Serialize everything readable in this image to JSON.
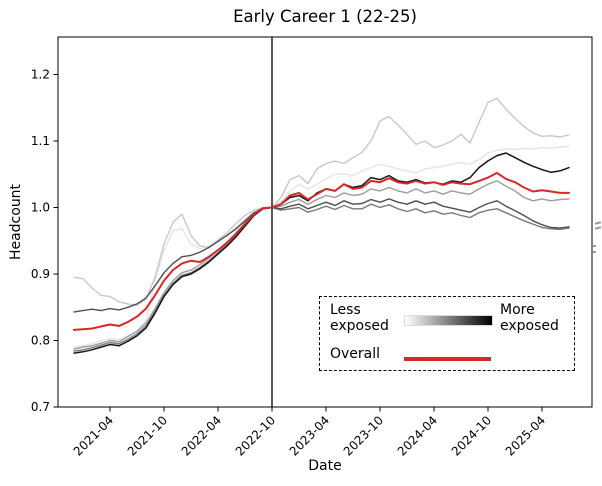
{
  "title": "Early Career 1 (22-25)",
  "axes": {
    "x_label": "Date",
    "y_label": "Headcount"
  },
  "legend": {
    "less_exposed_label": "Less exposed",
    "more_exposed_label": "More exposed",
    "overall_label": "Overall",
    "gradient_start_color": "#ffffff",
    "gradient_end_color": "#000000",
    "overall_color": "#d62828"
  },
  "chart_data": {
    "type": "line",
    "title": "Early Career 1 (22-25)",
    "xlabel": "Date",
    "ylabel": "Headcount",
    "ylim": [
      0.7,
      1.256
    ],
    "yticks": [
      0.7,
      0.8,
      0.9,
      1.0,
      1.1,
      1.2
    ],
    "xticks": [
      "2021-04",
      "2021-10",
      "2022-04",
      "2022-10",
      "2023-04",
      "2023-10",
      "2024-04",
      "2024-10",
      "2025-04"
    ],
    "vline_x": "2022-10",
    "grid": false,
    "legend_position": "lower right",
    "x": [
      "2020-12",
      "2021-01",
      "2021-02",
      "2021-03",
      "2021-04",
      "2021-05",
      "2021-06",
      "2021-07",
      "2021-08",
      "2021-09",
      "2021-10",
      "2021-11",
      "2021-12",
      "2022-01",
      "2022-02",
      "2022-03",
      "2022-04",
      "2022-05",
      "2022-06",
      "2022-07",
      "2022-08",
      "2022-09",
      "2022-10",
      "2022-11",
      "2022-12",
      "2023-01",
      "2023-02",
      "2023-03",
      "2023-04",
      "2023-05",
      "2023-06",
      "2023-07",
      "2023-08",
      "2023-09",
      "2023-10",
      "2023-11",
      "2023-12",
      "2024-01",
      "2024-02",
      "2024-03",
      "2024-04",
      "2024-05",
      "2024-06",
      "2024-07",
      "2024-08",
      "2024-09",
      "2024-10",
      "2024-11",
      "2024-12",
      "2025-01",
      "2025-02",
      "2025-03",
      "2025-04",
      "2025-05",
      "2025-06",
      "2025-07"
    ],
    "series": [
      {
        "name": "exposure-quantile-1-least-exposed",
        "color": "#e4e4e4",
        "width": 1.4,
        "values": [
          0.79,
          0.792,
          0.795,
          0.8,
          0.803,
          0.801,
          0.807,
          0.813,
          0.83,
          0.89,
          0.935,
          0.965,
          0.968,
          0.945,
          0.938,
          0.942,
          0.95,
          0.958,
          0.97,
          0.982,
          0.994,
          1.0,
          1.0,
          1.008,
          1.025,
          1.035,
          1.028,
          1.035,
          1.043,
          1.05,
          1.051,
          1.048,
          1.055,
          1.06,
          1.065,
          1.062,
          1.058,
          1.055,
          1.052,
          1.058,
          1.06,
          1.062,
          1.065,
          1.068,
          1.065,
          1.072,
          1.082,
          1.086,
          1.088,
          1.087,
          1.089,
          1.088,
          1.09,
          1.089,
          1.091,
          1.092
        ]
      },
      {
        "name": "exposure-quantile-2",
        "color": "#c8c8c8",
        "width": 1.4,
        "values": [
          0.895,
          0.893,
          0.879,
          0.868,
          0.866,
          0.858,
          0.855,
          0.853,
          0.862,
          0.895,
          0.945,
          0.978,
          0.99,
          0.958,
          0.942,
          0.94,
          0.951,
          0.962,
          0.976,
          0.988,
          0.996,
          1.0,
          1.0,
          1.015,
          1.042,
          1.048,
          1.036,
          1.058,
          1.066,
          1.07,
          1.066,
          1.075,
          1.083,
          1.1,
          1.13,
          1.137,
          1.124,
          1.11,
          1.095,
          1.1,
          1.09,
          1.094,
          1.1,
          1.11,
          1.097,
          1.128,
          1.158,
          1.164,
          1.148,
          1.134,
          1.122,
          1.112,
          1.107,
          1.108,
          1.106,
          1.109
        ]
      },
      {
        "name": "exposure-quantile-3",
        "color": "#9c9c9c",
        "width": 1.4,
        "values": [
          0.787,
          0.79,
          0.792,
          0.796,
          0.8,
          0.798,
          0.806,
          0.814,
          0.826,
          0.848,
          0.872,
          0.89,
          0.902,
          0.906,
          0.914,
          0.924,
          0.936,
          0.948,
          0.962,
          0.977,
          0.991,
          0.999,
          1.0,
          1.002,
          1.008,
          1.012,
          1.005,
          1.012,
          1.018,
          1.015,
          1.022,
          1.018,
          1.02,
          1.028,
          1.025,
          1.03,
          1.025,
          1.022,
          1.028,
          1.022,
          1.025,
          1.02,
          1.025,
          1.022,
          1.02,
          1.028,
          1.035,
          1.04,
          1.032,
          1.025,
          1.015,
          1.01,
          1.013,
          1.01,
          1.012,
          1.013
        ]
      },
      {
        "name": "exposure-quantile-4",
        "color": "#7a7a7a",
        "width": 1.4,
        "values": [
          0.784,
          0.786,
          0.789,
          0.793,
          0.797,
          0.795,
          0.802,
          0.81,
          0.822,
          0.844,
          0.868,
          0.886,
          0.898,
          0.902,
          0.91,
          0.92,
          0.932,
          0.944,
          0.958,
          0.974,
          0.989,
          0.998,
          1.0,
          0.996,
          0.998,
          1.0,
          0.993,
          0.997,
          1.002,
          0.997,
          1.003,
          0.998,
          0.998,
          1.005,
          1.0,
          1.004,
          0.998,
          0.994,
          0.998,
          0.992,
          0.995,
          0.99,
          0.992,
          0.988,
          0.985,
          0.992,
          0.996,
          0.998,
          0.992,
          0.986,
          0.98,
          0.975,
          0.97,
          0.968,
          0.967,
          0.969
        ]
      },
      {
        "name": "exposure-quantile-5",
        "color": "#4e4e4e",
        "width": 1.4,
        "values": [
          0.843,
          0.845,
          0.847,
          0.845,
          0.848,
          0.846,
          0.85,
          0.855,
          0.864,
          0.882,
          0.902,
          0.916,
          0.926,
          0.928,
          0.933,
          0.94,
          0.949,
          0.958,
          0.968,
          0.98,
          0.992,
          0.999,
          1.0,
          0.998,
          1.002,
          1.005,
          0.998,
          1.003,
          1.008,
          1.003,
          1.01,
          1.005,
          1.006,
          1.012,
          1.008,
          1.013,
          1.008,
          1.005,
          1.01,
          1.005,
          1.008,
          1.002,
          0.999,
          0.996,
          0.993,
          1.0,
          1.006,
          1.01,
          1.002,
          0.995,
          0.988,
          0.98,
          0.974,
          0.97,
          0.969,
          0.971
        ]
      },
      {
        "name": "exposure-quantile-6-most-exposed",
        "color": "#161616",
        "width": 1.5,
        "values": [
          0.781,
          0.783,
          0.786,
          0.79,
          0.794,
          0.792,
          0.799,
          0.807,
          0.819,
          0.841,
          0.866,
          0.884,
          0.896,
          0.9,
          0.908,
          0.918,
          0.93,
          0.942,
          0.956,
          0.972,
          0.988,
          0.998,
          1.0,
          1.005,
          1.015,
          1.018,
          1.01,
          1.022,
          1.028,
          1.025,
          1.035,
          1.03,
          1.033,
          1.045,
          1.042,
          1.048,
          1.04,
          1.038,
          1.042,
          1.037,
          1.038,
          1.035,
          1.04,
          1.038,
          1.045,
          1.06,
          1.07,
          1.078,
          1.082,
          1.075,
          1.068,
          1.062,
          1.057,
          1.053,
          1.055,
          1.06
        ]
      },
      {
        "name": "overall",
        "color": "#d62828",
        "width": 2.0,
        "values": [
          0.816,
          0.817,
          0.818,
          0.821,
          0.824,
          0.822,
          0.828,
          0.836,
          0.848,
          0.868,
          0.89,
          0.906,
          0.916,
          0.92,
          0.918,
          0.926,
          0.936,
          0.947,
          0.96,
          0.975,
          0.99,
          0.999,
          1.0,
          1.005,
          1.018,
          1.022,
          1.012,
          1.02,
          1.028,
          1.025,
          1.035,
          1.028,
          1.03,
          1.04,
          1.038,
          1.044,
          1.038,
          1.036,
          1.04,
          1.036,
          1.038,
          1.034,
          1.038,
          1.036,
          1.035,
          1.04,
          1.045,
          1.052,
          1.043,
          1.038,
          1.03,
          1.024,
          1.026,
          1.024,
          1.022,
          1.022
        ]
      }
    ]
  }
}
